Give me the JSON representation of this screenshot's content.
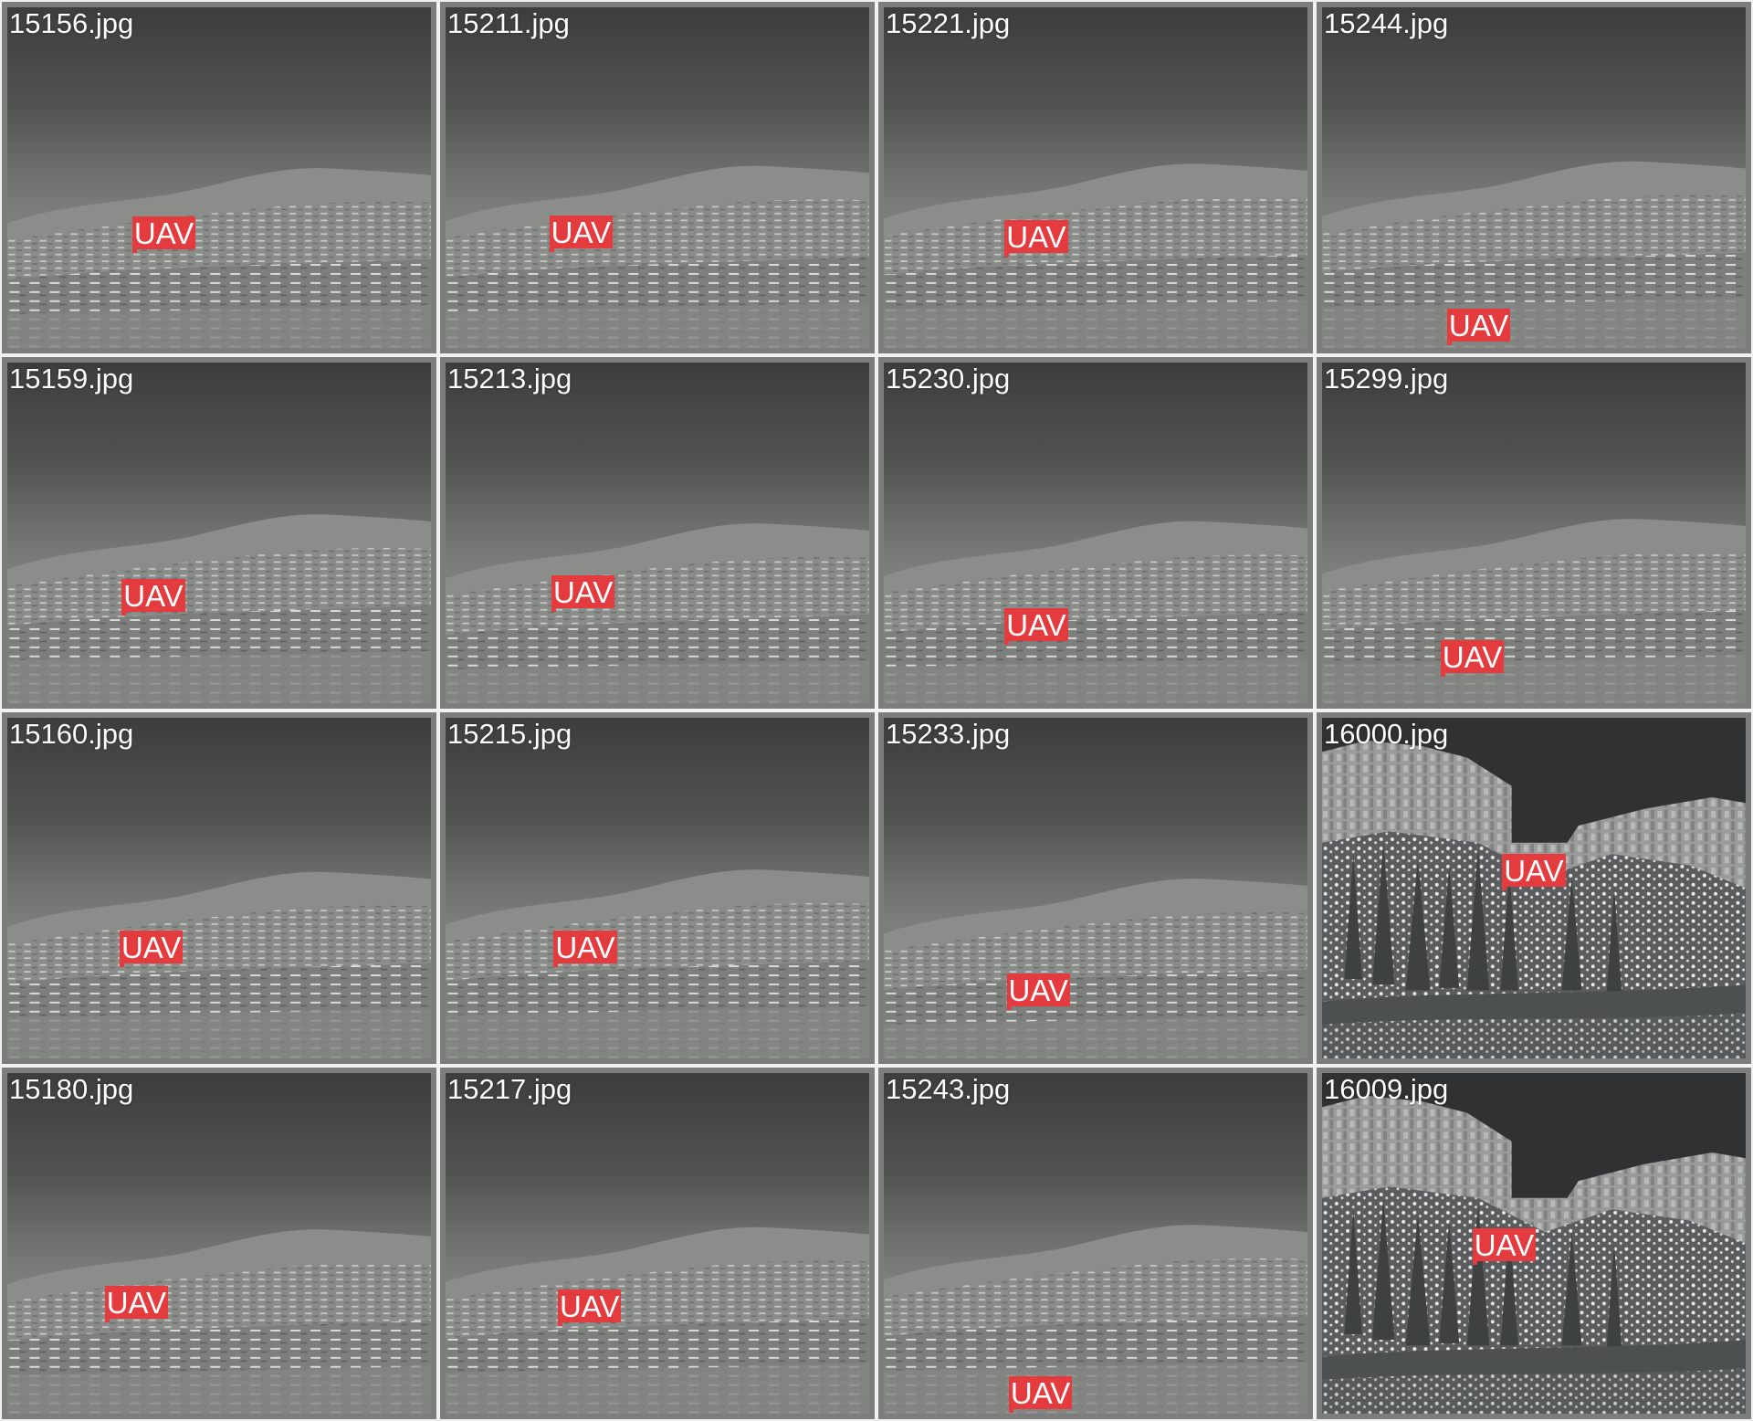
{
  "label_colors": {
    "box_fill": "#e43b3f",
    "text": "#ffffff"
  },
  "tiles": [
    {
      "filename": "15156.jpg",
      "scene": "hill",
      "detections": [
        {
          "label": "UAV"
        }
      ]
    },
    {
      "filename": "15211.jpg",
      "scene": "hill",
      "detections": [
        {
          "label": "UAV"
        }
      ]
    },
    {
      "filename": "15221.jpg",
      "scene": "hill",
      "detections": [
        {
          "label": "UAV"
        }
      ]
    },
    {
      "filename": "15244.jpg",
      "scene": "hill",
      "detections": [
        {
          "label": "UAV"
        }
      ]
    },
    {
      "filename": "15159.jpg",
      "scene": "hill",
      "detections": [
        {
          "label": "UAV"
        }
      ]
    },
    {
      "filename": "15213.jpg",
      "scene": "hill",
      "detections": [
        {
          "label": "UAV"
        }
      ]
    },
    {
      "filename": "15230.jpg",
      "scene": "hill",
      "detections": [
        {
          "label": "UAV"
        }
      ]
    },
    {
      "filename": "15299.jpg",
      "scene": "hill",
      "detections": [
        {
          "label": "UAV"
        }
      ]
    },
    {
      "filename": "15160.jpg",
      "scene": "hill",
      "detections": [
        {
          "label": "UAV"
        }
      ]
    },
    {
      "filename": "15215.jpg",
      "scene": "hill",
      "detections": [
        {
          "label": "UAV"
        }
      ]
    },
    {
      "filename": "15233.jpg",
      "scene": "hill",
      "detections": [
        {
          "label": "UAV"
        }
      ]
    },
    {
      "filename": "16000.jpg",
      "scene": "cliff",
      "detections": [
        {
          "label": "UAV"
        }
      ]
    },
    {
      "filename": "15180.jpg",
      "scene": "hill",
      "detections": [
        {
          "label": "UAV"
        }
      ]
    },
    {
      "filename": "15217.jpg",
      "scene": "hill",
      "detections": [
        {
          "label": "UAV"
        }
      ]
    },
    {
      "filename": "15243.jpg",
      "scene": "hill",
      "detections": [
        {
          "label": "UAV"
        }
      ]
    },
    {
      "filename": "16009.jpg",
      "scene": "cliff",
      "detections": [
        {
          "label": "UAV"
        }
      ]
    }
  ]
}
